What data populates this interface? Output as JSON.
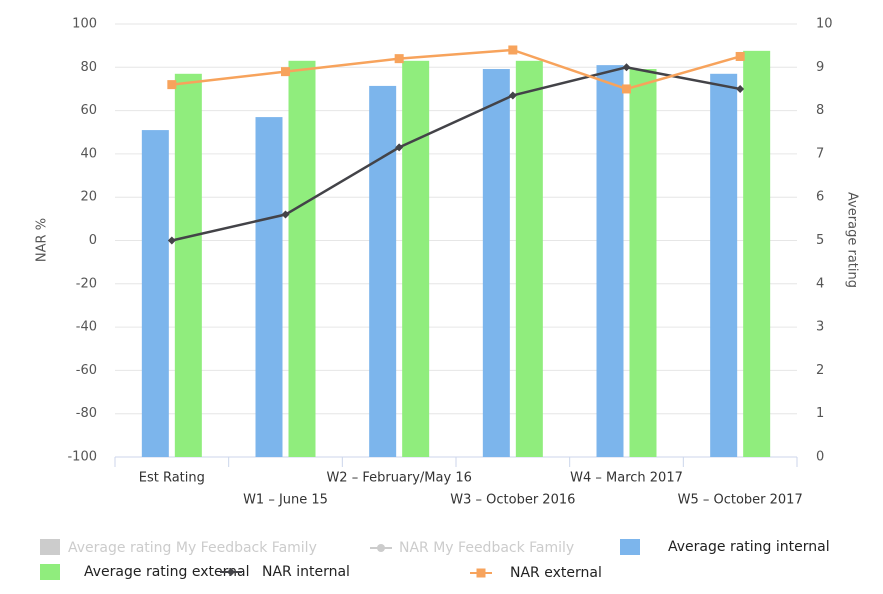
{
  "chart_data": {
    "type": "bar",
    "categories": [
      "Est Rating",
      "W1 – June 15",
      "W2 – February/May 16",
      "W3 – October 2016",
      "W4 – March 2017",
      "W5 – October 2017"
    ],
    "ylabel": "NAR %",
    "y2label": "Average rating",
    "ylim": [
      -100,
      100
    ],
    "yticks": [
      -100,
      -80,
      -60,
      -40,
      -20,
      0,
      20,
      40,
      60,
      80,
      100
    ],
    "y2lim": [
      0,
      10
    ],
    "y2ticks": [
      0,
      1,
      2,
      3,
      4,
      5,
      6,
      7,
      8,
      9,
      10
    ],
    "grid": true,
    "series": [
      {
        "name": "Average rating internal",
        "type": "bar",
        "axis": "y2",
        "color": "#7cb5ec",
        "values": [
          7.55,
          7.85,
          8.57,
          8.96,
          9.05,
          8.85
        ]
      },
      {
        "name": "Average rating external",
        "type": "bar",
        "axis": "y2",
        "color": "#90ed7d",
        "values": [
          8.85,
          9.15,
          9.15,
          9.15,
          8.96,
          9.38
        ]
      },
      {
        "name": "NAR internal",
        "type": "line",
        "color": "#434348",
        "values": [
          0,
          12,
          43,
          67,
          80,
          70
        ]
      },
      {
        "name": "NAR external",
        "type": "line",
        "color": "#f7a35c",
        "values": [
          72,
          78,
          84,
          88,
          70,
          85
        ]
      }
    ],
    "legend_hidden": [
      "Average rating My Feedback Family",
      "NAR My Feedback Family"
    ]
  }
}
